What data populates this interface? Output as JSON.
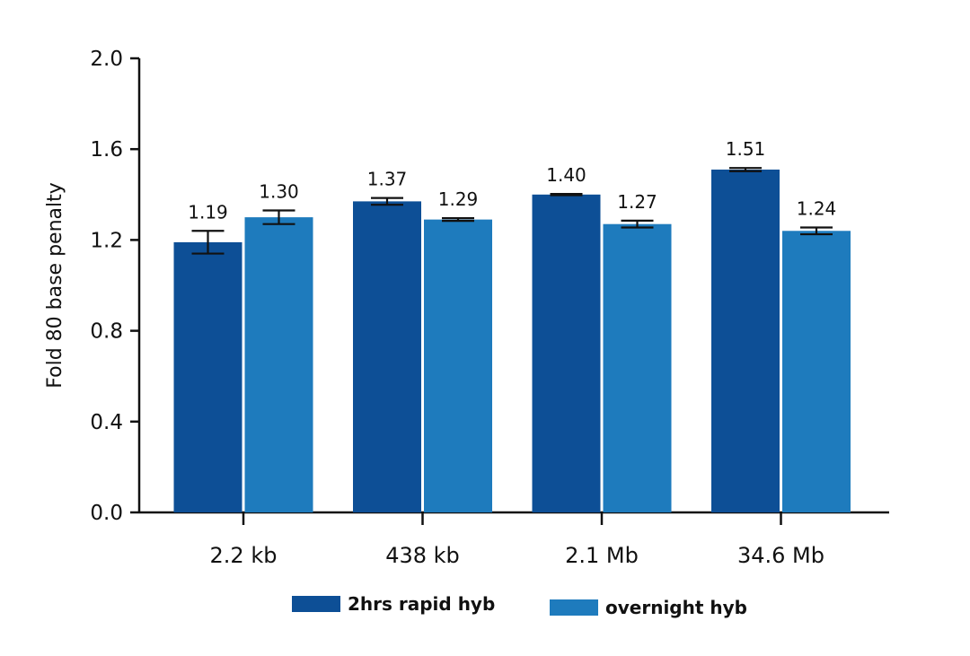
{
  "chart_data": {
    "type": "bar",
    "categories": [
      "2.2 kb",
      "438 kb",
      "2.1 Mb",
      "34.6 Mb"
    ],
    "series": [
      {
        "name": "2hrs rapid hyb",
        "color": "#0d4f96",
        "values": [
          1.19,
          1.37,
          1.4,
          1.51
        ],
        "errors": [
          0.05,
          0.015,
          0.003,
          0.007
        ],
        "value_labels": [
          "1.19",
          "1.37",
          "1.40",
          "1.51"
        ]
      },
      {
        "name": "overnight hyb",
        "color": "#1e7bbd",
        "values": [
          1.3,
          1.29,
          1.27,
          1.24
        ],
        "errors": [
          0.03,
          0.006,
          0.015,
          0.015
        ],
        "value_labels": [
          "1.30",
          "1.29",
          "1.27",
          "1.24"
        ]
      }
    ],
    "ylabel": "Fold 80 base penalty",
    "xlabel": "",
    "ylim": [
      0,
      2.0
    ],
    "yticks": [
      "0.0",
      "0.4",
      "0.8",
      "1.2",
      "1.6",
      "2.0"
    ],
    "grid": false,
    "legend_position": "bottom"
  }
}
